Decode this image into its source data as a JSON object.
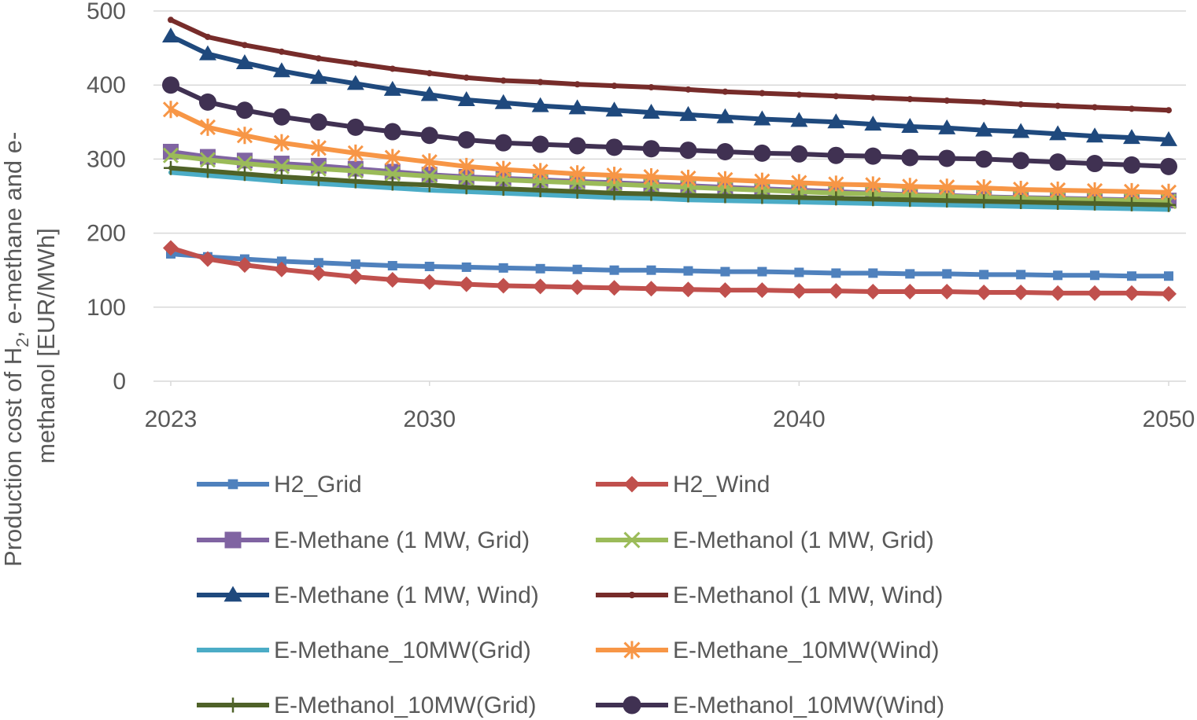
{
  "chart_data": {
    "type": "line",
    "title": "",
    "xlabel": "",
    "ylabel_parts": {
      "line1_a": "Production cost of H",
      "line1_sub": "2",
      "line1_b": ", e-methane and e-",
      "line2": "methanol [EUR/MWh]"
    },
    "xlim": [
      2023,
      2050
    ],
    "ylim": [
      0,
      500
    ],
    "x_ticks": [
      2023,
      2030,
      2040,
      2050
    ],
    "y_ticks": [
      0,
      100,
      200,
      300,
      400,
      500
    ],
    "grid": "horizontal",
    "legend_position": "bottom",
    "x": [
      2023,
      2024,
      2025,
      2026,
      2027,
      2028,
      2029,
      2030,
      2031,
      2032,
      2033,
      2034,
      2035,
      2036,
      2037,
      2038,
      2039,
      2040,
      2041,
      2042,
      2043,
      2044,
      2045,
      2046,
      2047,
      2048,
      2049,
      2050
    ],
    "series": [
      {
        "name": "H2_Grid",
        "color": "#4F81BD",
        "marker": "square-small",
        "width": 6,
        "values": [
          172,
          168,
          165,
          162,
          160,
          158,
          156,
          155,
          154,
          153,
          152,
          151,
          150,
          150,
          149,
          148,
          148,
          147,
          146,
          146,
          145,
          145,
          144,
          144,
          143,
          143,
          142,
          142
        ]
      },
      {
        "name": "H2_Wind",
        "color": "#C0504D",
        "marker": "diamond",
        "width": 6,
        "values": [
          180,
          165,
          157,
          151,
          146,
          141,
          137,
          134,
          131,
          129,
          128,
          127,
          126,
          125,
          124,
          123,
          123,
          122,
          122,
          121,
          121,
          121,
          120,
          120,
          119,
          119,
          119,
          118
        ]
      },
      {
        "name": "E-Methane (1 MW, Grid)",
        "color": "#8064A2",
        "marker": "square",
        "width": 6,
        "values": [
          310,
          303,
          298,
          294,
          291,
          287,
          283,
          279,
          276,
          274,
          272,
          270,
          268,
          266,
          264,
          262,
          260,
          258,
          256,
          254,
          252,
          251,
          249,
          248,
          247,
          246,
          245,
          244
        ]
      },
      {
        "name": "E-Methanol (1 MW, Grid)",
        "color": "#9BBB59",
        "marker": "x",
        "width": 6,
        "values": [
          305,
          299,
          294,
          290,
          287,
          284,
          280,
          277,
          274,
          272,
          270,
          268,
          266,
          264,
          262,
          260,
          258,
          256,
          254,
          253,
          251,
          250,
          248,
          247,
          246,
          245,
          244,
          243
        ]
      },
      {
        "name": "E-Methane (1 MW, Wind)",
        "color": "#1F497D",
        "marker": "triangle",
        "width": 6,
        "values": [
          466,
          442,
          430,
          419,
          410,
          402,
          394,
          387,
          380,
          376,
          372,
          369,
          366,
          363,
          360,
          357,
          354,
          352,
          350,
          347,
          344,
          342,
          339,
          337,
          334,
          331,
          329,
          326
        ]
      },
      {
        "name": "E-Methanol (1 MW, Wind)",
        "color": "#772C2A",
        "marker": "dot-small",
        "width": 6,
        "values": [
          488,
          465,
          454,
          445,
          436,
          429,
          422,
          416,
          410,
          406,
          404,
          401,
          399,
          397,
          394,
          391,
          389,
          387,
          385,
          383,
          381,
          379,
          377,
          374,
          372,
          370,
          368,
          366
        ]
      },
      {
        "name": "E-Methane_10MW(Grid)",
        "color": "#4BACC6",
        "marker": "none",
        "width": 6,
        "values": [
          282,
          278,
          274,
          270,
          267,
          264,
          261,
          258,
          256,
          254,
          252,
          250,
          248,
          247,
          245,
          244,
          243,
          242,
          241,
          240,
          239,
          238,
          237,
          236,
          235,
          234,
          233,
          232
        ]
      },
      {
        "name": "E-Methane_10MW(Wind)",
        "color": "#F79646",
        "marker": "star",
        "width": 6,
        "values": [
          367,
          343,
          332,
          322,
          315,
          308,
          302,
          296,
          290,
          286,
          283,
          280,
          278,
          276,
          274,
          272,
          270,
          268,
          266,
          265,
          263,
          262,
          261,
          259,
          258,
          257,
          256,
          255
        ]
      },
      {
        "name": "E-Methanol_10MW(Grid)",
        "color": "#4F6228",
        "marker": "plus",
        "width": 6,
        "values": [
          288,
          284,
          280,
          276,
          273,
          270,
          267,
          265,
          262,
          260,
          258,
          256,
          254,
          253,
          251,
          250,
          249,
          248,
          247,
          246,
          245,
          244,
          243,
          242,
          241,
          240,
          239,
          238
        ]
      },
      {
        "name": "E-Methanol_10MW(Wind)",
        "color": "#403152",
        "marker": "circle",
        "width": 6,
        "values": [
          400,
          377,
          366,
          357,
          350,
          343,
          337,
          332,
          326,
          322,
          320,
          318,
          316,
          314,
          312,
          310,
          308,
          307,
          305,
          304,
          302,
          301,
          300,
          298,
          296,
          294,
          292,
          290
        ]
      }
    ]
  }
}
